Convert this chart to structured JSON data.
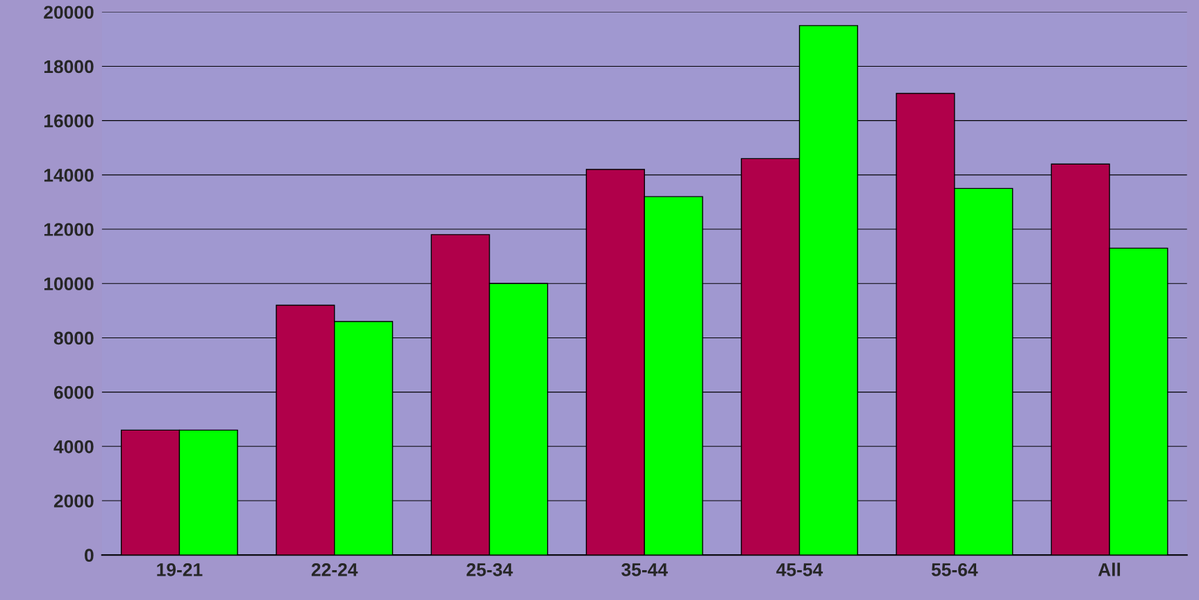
{
  "chart_data": {
    "type": "bar",
    "categories": [
      "19-21",
      "22-24",
      "25-34",
      "35-44",
      "45-54",
      "55-64",
      "All"
    ],
    "series": [
      {
        "color": "#b0004a",
        "values": [
          4600,
          9200,
          11800,
          14200,
          14600,
          17000,
          14400
        ]
      },
      {
        "color": "#00ff00",
        "values": [
          4600,
          8600,
          10000,
          13200,
          19500,
          13500,
          11300
        ]
      }
    ],
    "ylim": [
      0,
      20000
    ],
    "yticks": [
      0,
      2000,
      4000,
      6000,
      8000,
      10000,
      12000,
      14000,
      16000,
      18000,
      20000
    ],
    "grid": "y",
    "legend": false
  }
}
